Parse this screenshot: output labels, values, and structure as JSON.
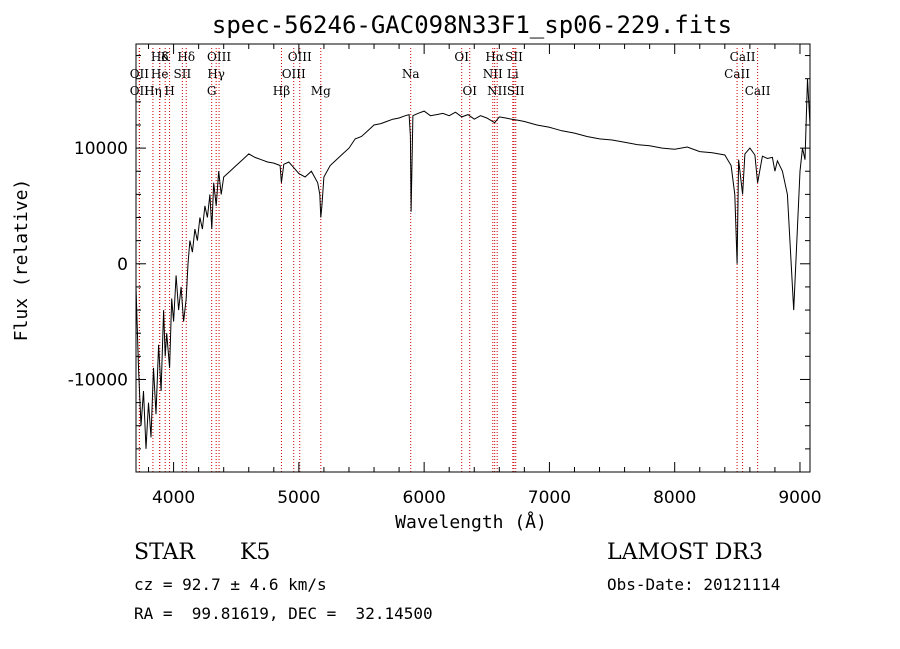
{
  "chart_data": {
    "type": "line",
    "title": "spec-56246-GAC098N33F1_sp06-229.fits",
    "xlabel": "Wavelength (Å)",
    "ylabel": "Flux (relative)",
    "xlim": [
      3700,
      9080
    ],
    "ylim": [
      -18000,
      19000
    ],
    "xticks": [
      4000,
      5000,
      6000,
      7000,
      8000,
      9000
    ],
    "yticks": [
      -10000,
      0,
      10000
    ],
    "grid": false,
    "series": [
      {
        "color": "#000000",
        "x": [
          3700,
          3720,
          3740,
          3760,
          3780,
          3800,
          3820,
          3840,
          3860,
          3880,
          3900,
          3920,
          3933,
          3945,
          3968,
          3985,
          4000,
          4020,
          4040,
          4060,
          4080,
          4101,
          4115,
          4130,
          4150,
          4170,
          4190,
          4210,
          4230,
          4250,
          4270,
          4290,
          4305,
          4320,
          4340,
          4360,
          4380,
          4400,
          4450,
          4500,
          4550,
          4600,
          4650,
          4700,
          4750,
          4800,
          4850,
          4861,
          4880,
          4920,
          4960,
          5000,
          5050,
          5100,
          5150,
          5167,
          5175,
          5184,
          5200,
          5250,
          5300,
          5350,
          5400,
          5450,
          5500,
          5550,
          5600,
          5650,
          5700,
          5750,
          5800,
          5850,
          5880,
          5890,
          5896,
          5910,
          5950,
          6000,
          6050,
          6100,
          6150,
          6200,
          6250,
          6300,
          6350,
          6400,
          6450,
          6500,
          6563,
          6600,
          6650,
          6700,
          6750,
          6800,
          6900,
          7000,
          7100,
          7200,
          7300,
          7400,
          7500,
          7600,
          7700,
          7800,
          7900,
          8000,
          8100,
          8200,
          8300,
          8400,
          8450,
          8480,
          8498,
          8510,
          8542,
          8560,
          8600,
          8640,
          8662,
          8700,
          8740,
          8780,
          8800,
          8820,
          8860,
          8900,
          8950,
          9000,
          9020,
          9040,
          9060,
          9080
        ],
        "y": [
          -2000,
          -9000,
          -14000,
          -11000,
          -16000,
          -12000,
          -15000,
          -9000,
          -13000,
          -7000,
          -11000,
          -4000,
          -8000,
          -6000,
          -9000,
          -3000,
          -5000,
          -1000,
          -4000,
          -2000,
          -5000,
          -3000,
          0,
          2000,
          1000,
          3000,
          2000,
          4000,
          3000,
          5000,
          4000,
          6000,
          3000,
          7000,
          5000,
          8000,
          6000,
          7500,
          8000,
          8500,
          9000,
          9500,
          9200,
          9000,
          8800,
          8700,
          8500,
          7000,
          8600,
          8800,
          8300,
          7800,
          7500,
          8000,
          7000,
          6000,
          4000,
          5000,
          7500,
          8500,
          9000,
          9500,
          10000,
          10800,
          11000,
          11500,
          12000,
          12100,
          12300,
          12500,
          12600,
          12800,
          12900,
          11000,
          4500,
          12800,
          13000,
          13200,
          12800,
          12900,
          13000,
          12800,
          13100,
          12700,
          12900,
          12500,
          12800,
          12600,
          12200,
          12700,
          12600,
          12500,
          12400,
          12300,
          12000,
          11800,
          11500,
          11300,
          11000,
          10800,
          10700,
          10500,
          10300,
          10200,
          10000,
          9900,
          10100,
          9700,
          9600,
          9400,
          8500,
          6000,
          0,
          9000,
          6000,
          9500,
          10000,
          9400,
          7000,
          9300,
          9100,
          9200,
          8000,
          8900,
          8000,
          6000,
          -4000,
          8000,
          10000,
          9000,
          16000,
          12000
        ]
      }
    ],
    "spectral_lines": [
      {
        "label": "Hδ",
        "wavelength": 3889,
        "row": 1
      },
      {
        "label": "K",
        "wavelength": 3933,
        "row": 1
      },
      {
        "label": "Hδ",
        "wavelength": 4101,
        "row": 1
      },
      {
        "label": "OIII",
        "wavelength": 4363,
        "row": 1
      },
      {
        "label": "OIII",
        "wavelength": 5007,
        "row": 1
      },
      {
        "label": "OI",
        "wavelength": 6300,
        "row": 1
      },
      {
        "label": "Hα",
        "wavelength": 6563,
        "row": 1
      },
      {
        "label": "SII",
        "wavelength": 6717,
        "row": 1
      },
      {
        "label": "CaII",
        "wavelength": 8542,
        "row": 1
      },
      {
        "label": "OII",
        "wavelength": 3727,
        "row": 2
      },
      {
        "label": "He",
        "wavelength": 3889,
        "row": 2
      },
      {
        "label": "SII",
        "wavelength": 4070,
        "row": 2
      },
      {
        "label": "Hγ",
        "wavelength": 4340,
        "row": 2
      },
      {
        "label": "OIII",
        "wavelength": 4959,
        "row": 2
      },
      {
        "label": "Na",
        "wavelength": 5893,
        "row": 2
      },
      {
        "label": "NII",
        "wavelength": 6548,
        "row": 2
      },
      {
        "label": "Li",
        "wavelength": 6708,
        "row": 2
      },
      {
        "label": "CaII",
        "wavelength": 8498,
        "row": 2
      },
      {
        "label": "OII",
        "wavelength": 3727,
        "row": 3
      },
      {
        "label": "Hη",
        "wavelength": 3835,
        "row": 3
      },
      {
        "label": "H",
        "wavelength": 3968,
        "row": 3
      },
      {
        "label": "G",
        "wavelength": 4304,
        "row": 3
      },
      {
        "label": "Hβ",
        "wavelength": 4861,
        "row": 3
      },
      {
        "label": "Mg",
        "wavelength": 5175,
        "row": 3
      },
      {
        "label": "OI",
        "wavelength": 6364,
        "row": 3
      },
      {
        "label": "NII",
        "wavelength": 6583,
        "row": 3
      },
      {
        "label": "SII",
        "wavelength": 6731,
        "row": 3
      },
      {
        "label": "CaII",
        "wavelength": 8662,
        "row": 3
      }
    ],
    "line_marker_color": "#cc0000"
  },
  "info": {
    "class": "STAR",
    "subclass": "K5",
    "survey": "LAMOST DR3",
    "cz": "cz = 92.7 ± 4.6 km/s",
    "obs_date": "Obs-Date: 20121114",
    "coords": "RA =  99.81619, DEC =  32.14500"
  }
}
